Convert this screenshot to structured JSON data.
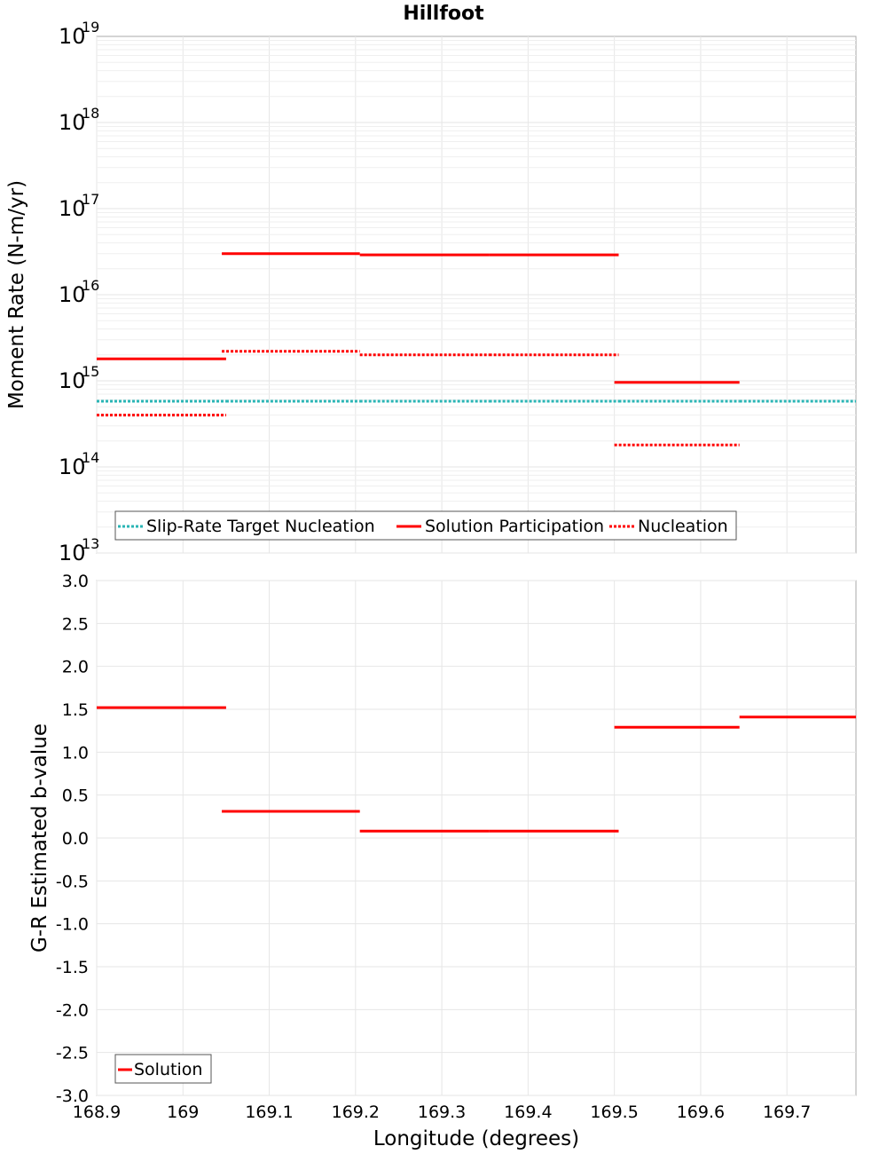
{
  "chart_data": [
    {
      "type": "line",
      "title": "Hillfoot",
      "xlabel": "Longitude (degrees)",
      "ylabel": "Moment Rate (N-m/yr)",
      "yscale": "log",
      "xlim": [
        168.9,
        169.78
      ],
      "ylim": [
        10000000000000.0,
        1e+19
      ],
      "ytick_exponents": [
        "13",
        "14",
        "15",
        "16",
        "17",
        "18",
        "19"
      ],
      "ytick_base": "10",
      "legend_position": "bottom-left",
      "series": [
        {
          "name": "Slip-Rate Target Nucleation",
          "color": "#2ab5b5",
          "style": "dotted",
          "segments": [
            {
              "x": [
                168.9,
                169.05
              ],
              "y": 580000000000000.0
            },
            {
              "x": [
                169.05,
                169.205
              ],
              "y": 580000000000000.0
            },
            {
              "x": [
                169.205,
                169.355
              ],
              "y": 580000000000000.0
            },
            {
              "x": [
                169.355,
                169.505
              ],
              "y": 580000000000000.0
            },
            {
              "x": [
                169.505,
                169.645
              ],
              "y": 580000000000000.0
            },
            {
              "x": [
                169.645,
                169.78
              ],
              "y": 580000000000000.0
            }
          ]
        },
        {
          "name": "Solution Participation",
          "color": "#ff0000",
          "style": "solid",
          "segments": [
            {
              "x": [
                168.9,
                169.05
              ],
              "y": 1800000000000000.0
            },
            {
              "x": [
                169.045,
                169.205
              ],
              "y": 3e+16
            },
            {
              "x": [
                169.205,
                169.355
              ],
              "y": 2.9e+16
            },
            {
              "x": [
                169.355,
                169.505
              ],
              "y": 2.9e+16
            },
            {
              "x": [
                169.5,
                169.645
              ],
              "y": 960000000000000.0
            }
          ]
        },
        {
          "name": "Nucleation",
          "color": "#ff0000",
          "style": "dotted",
          "segments": [
            {
              "x": [
                168.9,
                169.05
              ],
              "y": 400000000000000.0
            },
            {
              "x": [
                169.045,
                169.205
              ],
              "y": 2200000000000000.0
            },
            {
              "x": [
                169.205,
                169.355
              ],
              "y": 2000000000000000.0
            },
            {
              "x": [
                169.355,
                169.505
              ],
              "y": 2000000000000000.0
            },
            {
              "x": [
                169.5,
                169.645
              ],
              "y": 180000000000000.0
            }
          ]
        }
      ]
    },
    {
      "type": "line",
      "title": "",
      "xlabel": "Longitude (degrees)",
      "ylabel": "G-R Estimated b-value",
      "xlim": [
        168.9,
        169.78
      ],
      "ylim": [
        -3.0,
        3.0
      ],
      "yticks": [
        -3.0,
        -2.5,
        -2.0,
        -1.5,
        -1.0,
        -0.5,
        0.0,
        0.5,
        1.0,
        1.5,
        2.0,
        2.5,
        3.0
      ],
      "ytick_labels": [
        "-3.0",
        "-2.5",
        "-2.0",
        "-1.5",
        "-1.0",
        "-0.5",
        "0.0",
        "0.5",
        "1.0",
        "1.5",
        "2.0",
        "2.5",
        "3.0"
      ],
      "xticks": [
        168.9,
        169.0,
        169.1,
        169.2,
        169.3,
        169.4,
        169.5,
        169.6,
        169.7
      ],
      "xtick_labels": [
        "168.9",
        "169",
        "169.1",
        "169.2",
        "169.3",
        "169.4",
        "169.5",
        "169.6",
        "169.7"
      ],
      "legend_position": "bottom-left",
      "series": [
        {
          "name": "Solution",
          "color": "#ff0000",
          "style": "solid",
          "segments": [
            {
              "x": [
                168.9,
                169.05
              ],
              "y": 1.52
            },
            {
              "x": [
                169.045,
                169.205
              ],
              "y": 0.31
            },
            {
              "x": [
                169.205,
                169.355
              ],
              "y": 0.08
            },
            {
              "x": [
                169.355,
                169.505
              ],
              "y": 0.08
            },
            {
              "x": [
                169.5,
                169.645
              ],
              "y": 1.29
            },
            {
              "x": [
                169.645,
                169.78
              ],
              "y": 1.41
            }
          ]
        }
      ]
    }
  ]
}
